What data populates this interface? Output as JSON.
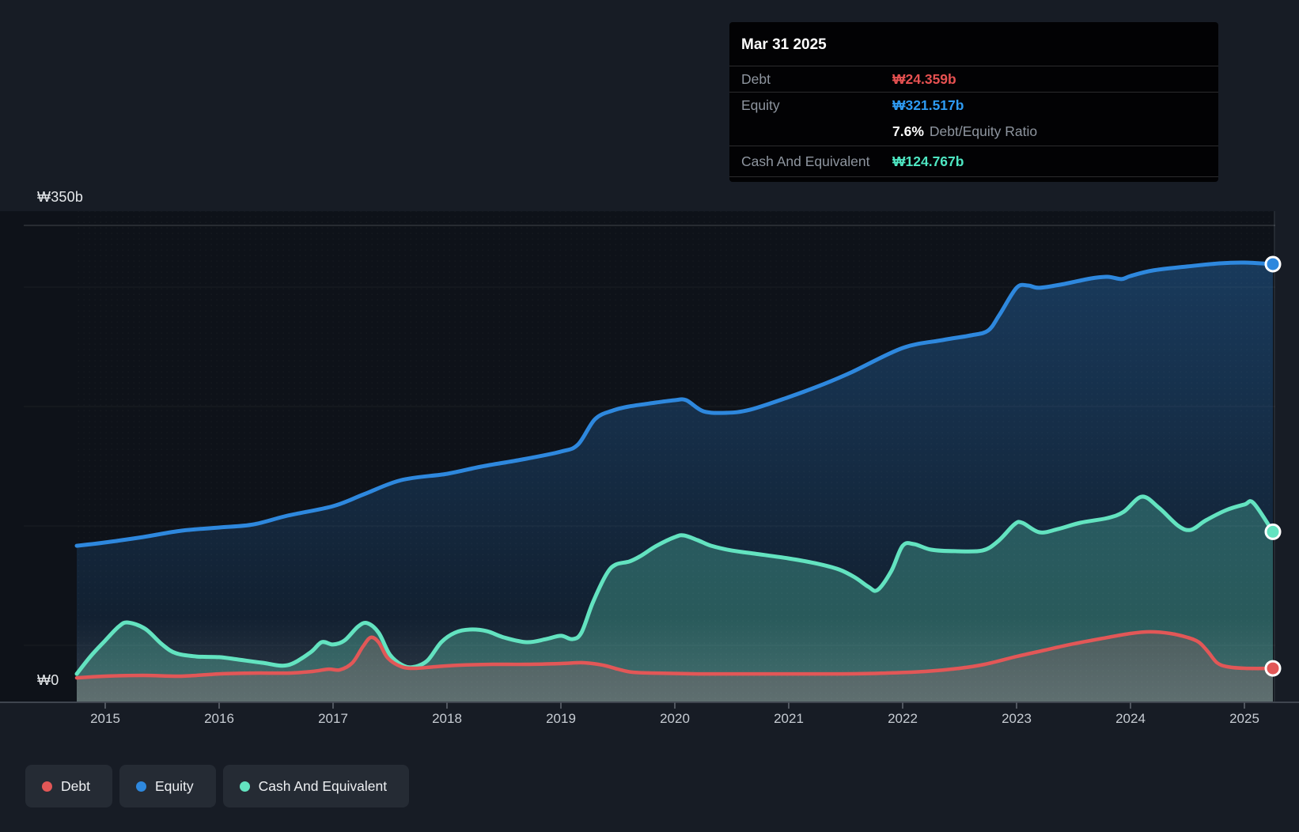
{
  "tooltip": {
    "title": "Mar 31 2025",
    "debt_label": "Debt",
    "debt_value": "₩24.359b",
    "equity_label": "Equity",
    "equity_value": "₩321.517b",
    "ratio_value": "7.6%",
    "ratio_label": "Debt/Equity Ratio",
    "cash_label": "Cash And Equivalent",
    "cash_value": "₩124.767b"
  },
  "y_axis": {
    "top_label": "₩350b",
    "zero_label": "₩0"
  },
  "x_axis": {
    "ticks": [
      "2015",
      "2016",
      "2017",
      "2018",
      "2019",
      "2020",
      "2021",
      "2022",
      "2023",
      "2024",
      "2025"
    ]
  },
  "legend": [
    {
      "label": "Debt",
      "color": "#e25757"
    },
    {
      "label": "Equity",
      "color": "#2e88de"
    },
    {
      "label": "Cash And Equivalent",
      "color": "#63e3c0"
    }
  ],
  "chart_data": {
    "type": "area",
    "unit": "₩ billions (KRW)",
    "x_range": [
      2014.75,
      2025.25
    ],
    "ylim": [
      0,
      350
    ],
    "y_gridlines_labeled": [
      0,
      350
    ],
    "legend_position": "bottom-left",
    "tooltip_point": {
      "date": "Mar 31 2025",
      "debt": 24.359,
      "equity": 321.517,
      "debt_equity_ratio_pct": 7.6,
      "cash_and_equivalent": 124.767
    },
    "series": [
      {
        "name": "Equity",
        "key": "equity",
        "color": "#2e88de",
        "points": [
          [
            2014.75,
            114.5
          ],
          [
            2015.0,
            116.9
          ],
          [
            2015.33,
            120.9
          ],
          [
            2015.67,
            125.6
          ],
          [
            2016.0,
            127.9
          ],
          [
            2016.3,
            130.2
          ],
          [
            2016.6,
            136.6
          ],
          [
            2017.0,
            143.6
          ],
          [
            2017.27,
            152.3
          ],
          [
            2017.6,
            162.8
          ],
          [
            2018.0,
            167.4
          ],
          [
            2018.3,
            172.7
          ],
          [
            2018.66,
            177.9
          ],
          [
            2019.0,
            183.7
          ],
          [
            2019.15,
            188.9
          ],
          [
            2019.3,
            207.6
          ],
          [
            2019.46,
            214.0
          ],
          [
            2019.6,
            216.9
          ],
          [
            2019.84,
            219.8
          ],
          [
            2020.0,
            221.5
          ],
          [
            2020.1,
            221.5
          ],
          [
            2020.25,
            213.4
          ],
          [
            2020.45,
            212.2
          ],
          [
            2020.66,
            214.5
          ],
          [
            2021.0,
            223.8
          ],
          [
            2021.3,
            233.1
          ],
          [
            2021.56,
            242.4
          ],
          [
            2022.0,
            259.9
          ],
          [
            2022.35,
            265.7
          ],
          [
            2022.6,
            269.2
          ],
          [
            2022.75,
            272.7
          ],
          [
            2022.85,
            284.3
          ],
          [
            2023.0,
            304.1
          ],
          [
            2023.1,
            305.8
          ],
          [
            2023.2,
            304.1
          ],
          [
            2023.42,
            307.0
          ],
          [
            2023.65,
            311.0
          ],
          [
            2023.8,
            312.2
          ],
          [
            2023.92,
            310.5
          ],
          [
            2024.0,
            312.8
          ],
          [
            2024.2,
            316.9
          ],
          [
            2024.5,
            319.8
          ],
          [
            2024.78,
            322.1
          ],
          [
            2025.0,
            322.7
          ],
          [
            2025.25,
            321.517
          ]
        ]
      },
      {
        "name": "Cash And Equivalent",
        "key": "cash",
        "color": "#63e3c0",
        "points": [
          [
            2014.75,
            20.3
          ],
          [
            2014.87,
            33.1
          ],
          [
            2015.0,
            44.8
          ],
          [
            2015.12,
            55.2
          ],
          [
            2015.2,
            58.1
          ],
          [
            2015.35,
            53.5
          ],
          [
            2015.5,
            41.9
          ],
          [
            2015.62,
            35.5
          ],
          [
            2015.8,
            33.1
          ],
          [
            2016.0,
            32.6
          ],
          [
            2016.17,
            30.8
          ],
          [
            2016.38,
            28.5
          ],
          [
            2016.6,
            26.7
          ],
          [
            2016.8,
            36.0
          ],
          [
            2016.9,
            43.6
          ],
          [
            2017.0,
            41.9
          ],
          [
            2017.1,
            44.8
          ],
          [
            2017.22,
            55.2
          ],
          [
            2017.3,
            57.6
          ],
          [
            2017.4,
            50.6
          ],
          [
            2017.5,
            34.3
          ],
          [
            2017.62,
            26.2
          ],
          [
            2017.72,
            25.6
          ],
          [
            2017.83,
            30.2
          ],
          [
            2017.95,
            43.6
          ],
          [
            2018.07,
            50.6
          ],
          [
            2018.2,
            52.9
          ],
          [
            2018.35,
            51.7
          ],
          [
            2018.5,
            47.1
          ],
          [
            2018.7,
            43.6
          ],
          [
            2018.87,
            45.9
          ],
          [
            2019.0,
            48.3
          ],
          [
            2019.1,
            45.9
          ],
          [
            2019.18,
            50.6
          ],
          [
            2019.28,
            72.7
          ],
          [
            2019.4,
            93.6
          ],
          [
            2019.48,
            100.6
          ],
          [
            2019.6,
            102.9
          ],
          [
            2019.7,
            107.0
          ],
          [
            2019.84,
            114.5
          ],
          [
            2020.0,
            120.9
          ],
          [
            2020.08,
            122.1
          ],
          [
            2020.2,
            118.6
          ],
          [
            2020.32,
            114.5
          ],
          [
            2020.5,
            111.0
          ],
          [
            2020.7,
            108.7
          ],
          [
            2021.0,
            105.2
          ],
          [
            2021.23,
            101.7
          ],
          [
            2021.44,
            97.1
          ],
          [
            2021.58,
            91.3
          ],
          [
            2021.7,
            84.3
          ],
          [
            2021.78,
            82.0
          ],
          [
            2021.9,
            95.9
          ],
          [
            2022.0,
            114.5
          ],
          [
            2022.1,
            115.7
          ],
          [
            2022.25,
            111.6
          ],
          [
            2022.46,
            110.5
          ],
          [
            2022.7,
            111.0
          ],
          [
            2022.84,
            118.0
          ],
          [
            2022.98,
            130.2
          ],
          [
            2023.05,
            131.4
          ],
          [
            2023.2,
            124.4
          ],
          [
            2023.36,
            126.7
          ],
          [
            2023.56,
            131.4
          ],
          [
            2023.8,
            134.9
          ],
          [
            2023.94,
            139.5
          ],
          [
            2024.1,
            150.6
          ],
          [
            2024.25,
            142.4
          ],
          [
            2024.42,
            129.1
          ],
          [
            2024.53,
            126.2
          ],
          [
            2024.66,
            133.1
          ],
          [
            2024.84,
            140.7
          ],
          [
            2025.0,
            144.8
          ],
          [
            2025.08,
            145.9
          ],
          [
            2025.25,
            124.767
          ]
        ]
      },
      {
        "name": "Debt",
        "key": "debt",
        "color": "#e25757",
        "points": [
          [
            2014.75,
            17.4
          ],
          [
            2015.0,
            18.6
          ],
          [
            2015.33,
            19.2
          ],
          [
            2015.67,
            18.6
          ],
          [
            2016.0,
            20.3
          ],
          [
            2016.3,
            20.9
          ],
          [
            2016.6,
            20.9
          ],
          [
            2016.82,
            22.1
          ],
          [
            2016.96,
            23.8
          ],
          [
            2017.06,
            23.3
          ],
          [
            2017.17,
            28.5
          ],
          [
            2017.26,
            40.1
          ],
          [
            2017.33,
            47.1
          ],
          [
            2017.4,
            43.6
          ],
          [
            2017.48,
            32.0
          ],
          [
            2017.6,
            25.6
          ],
          [
            2017.72,
            24.4
          ],
          [
            2017.9,
            25.6
          ],
          [
            2018.1,
            26.7
          ],
          [
            2018.4,
            27.3
          ],
          [
            2018.7,
            27.3
          ],
          [
            2019.0,
            27.9
          ],
          [
            2019.2,
            28.5
          ],
          [
            2019.37,
            26.7
          ],
          [
            2019.5,
            23.8
          ],
          [
            2019.63,
            21.5
          ],
          [
            2019.84,
            20.9
          ],
          [
            2020.2,
            20.3
          ],
          [
            2020.6,
            20.3
          ],
          [
            2021.0,
            20.3
          ],
          [
            2021.45,
            20.3
          ],
          [
            2021.85,
            20.9
          ],
          [
            2022.2,
            22.1
          ],
          [
            2022.5,
            24.4
          ],
          [
            2022.72,
            27.3
          ],
          [
            2023.0,
            33.1
          ],
          [
            2023.25,
            37.8
          ],
          [
            2023.5,
            42.4
          ],
          [
            2023.8,
            47.1
          ],
          [
            2024.0,
            50.0
          ],
          [
            2024.17,
            51.2
          ],
          [
            2024.35,
            50.0
          ],
          [
            2024.5,
            47.1
          ],
          [
            2024.6,
            43.6
          ],
          [
            2024.68,
            36.6
          ],
          [
            2024.76,
            28.5
          ],
          [
            2024.85,
            25.6
          ],
          [
            2025.0,
            24.4
          ],
          [
            2025.25,
            24.359
          ]
        ]
      }
    ]
  }
}
